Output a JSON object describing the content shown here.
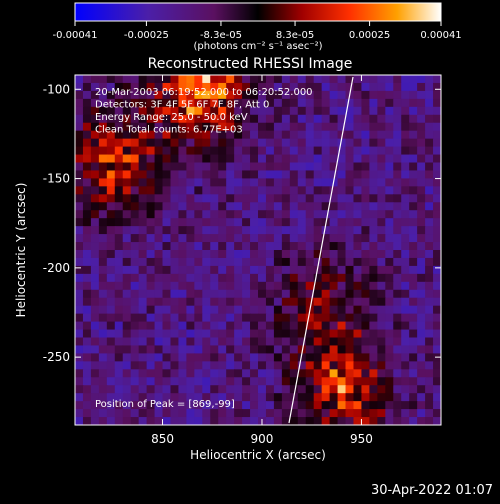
{
  "colorbar": {
    "ticks": [
      "-0.00041",
      "-0.00025",
      "-8.3e-05",
      "8.3e-05",
      "0.00025",
      "0.00041"
    ],
    "tick_values": [
      -0.00041,
      -0.00025,
      -8.3e-05,
      8.3e-05,
      0.00025,
      0.00041
    ],
    "range": [
      -0.00041,
      0.00041
    ],
    "unit_label": "(photons cm⁻² s⁻¹ asec⁻²)",
    "colormap": [
      "#0000ff",
      "#4020b0",
      "#701070",
      "#000000",
      "#a00000",
      "#ff4000",
      "#ffa000",
      "#ffff80",
      "#ffffff"
    ]
  },
  "chart_data": {
    "type": "heatmap",
    "title": "Reconstructed RHESSI Image",
    "xlabel": "Heliocentric X (arcsec)",
    "ylabel": "Heliocentric Y (arcsec)",
    "xlim": [
      806,
      990
    ],
    "ylim": [
      -288,
      -92
    ],
    "xticks": [
      850,
      900,
      950
    ],
    "yticks": [
      -100,
      -150,
      -200,
      -250
    ],
    "peak": [
      869,
      -99
    ],
    "bright_regions": [
      {
        "x": 869,
        "y": -99,
        "value": 0.00041
      },
      {
        "x": 825,
        "y": -140,
        "value": 0.0003
      },
      {
        "x": 940,
        "y": -270,
        "value": 0.00032
      },
      {
        "x": 930,
        "y": -220,
        "value": 0.0002
      }
    ]
  },
  "info_lines": [
    "20-Mar-2003 06:19:52.000 to 06:20:52.000",
    "Detectors: 3F 4F 5F 6F 7F 8F, Att 0",
    "Energy Range: 25.0 - 50.0 keV",
    "Clean    Total counts: 6.77E+03"
  ],
  "peak_label": "Position of Peak = [869,-99]",
  "footer_date": "30-Apr-2022 01:07"
}
